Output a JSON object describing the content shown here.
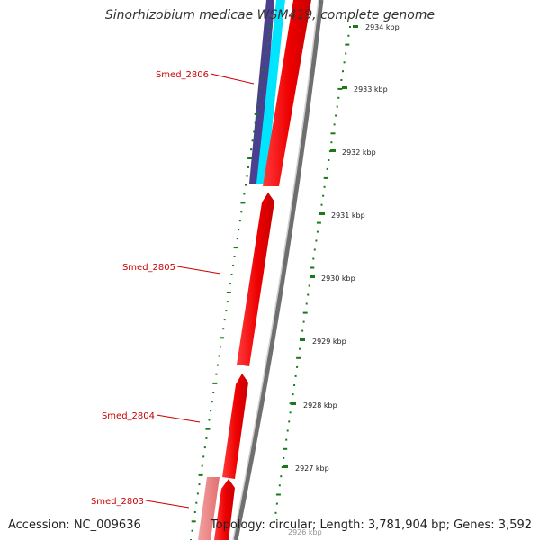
{
  "title": "Sinorhizobium medicae WSM419, complete genome",
  "accession": "Accession: NC_009636",
  "summary": "Topology: circular; Length: 3,781,904 bp; Genes: 3,592",
  "colors": {
    "gene_forward": "#ff0000",
    "gene_pale": "#f08080",
    "track_cyan": "#00e5ff",
    "track_purple": "#4b3f8f",
    "backbone": "#888888",
    "gc_dots": "#1a7a1a",
    "label": "#cc0000"
  },
  "genes": [
    {
      "name": "Smed_2806"
    },
    {
      "name": "Smed_2805"
    },
    {
      "name": "Smed_2804"
    },
    {
      "name": "Smed_2803"
    }
  ],
  "ticks": [
    {
      "label": "2934 kbp"
    },
    {
      "label": "2933 kbp"
    },
    {
      "label": "2932 kbp"
    },
    {
      "label": "2931 kbp"
    },
    {
      "label": "2930 kbp"
    },
    {
      "label": "2929 kbp"
    },
    {
      "label": "2928 kbp"
    },
    {
      "label": "2927 kbp"
    },
    {
      "label": "2926 kbp"
    }
  ]
}
